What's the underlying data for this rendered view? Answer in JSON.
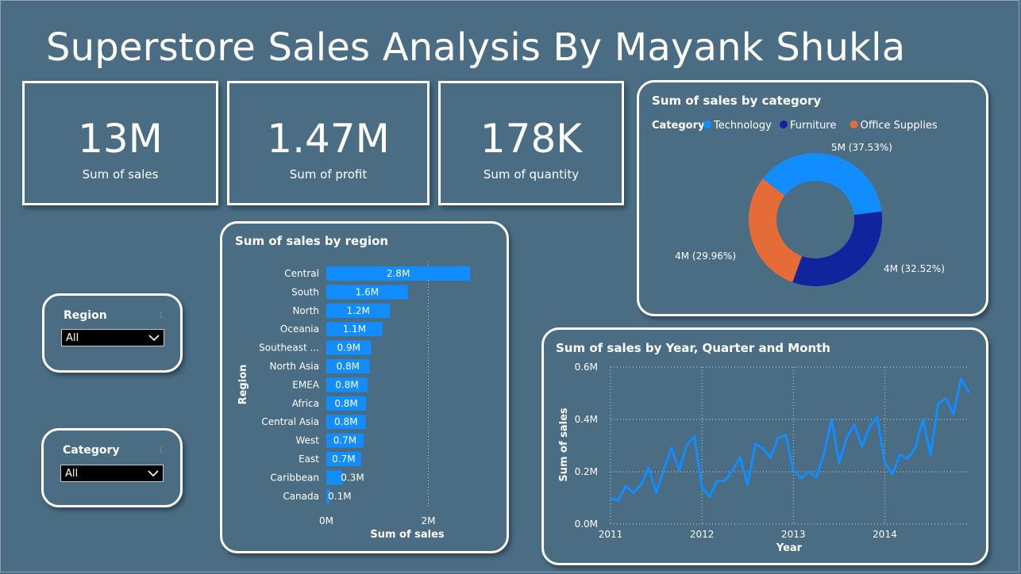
{
  "title": "Superstore Sales Analysis By Mayank Shukla",
  "kpis": [
    {
      "value": "13M",
      "label": "Sum of sales"
    },
    {
      "value": "1.47M",
      "label": "Sum of profit"
    },
    {
      "value": "178K",
      "label": "Sum of quantity"
    }
  ],
  "slicers": {
    "region": {
      "title": "Region",
      "selected": "All"
    },
    "category": {
      "title": "Category",
      "selected": "All"
    }
  },
  "colors": {
    "background": "#4a6d84",
    "accent": "#118dff",
    "technology": "#118dff",
    "furniture": "#12239e",
    "office_supplies": "#e66c37"
  },
  "chart_data": [
    {
      "type": "bar",
      "orientation": "horizontal",
      "title": "Sum of sales by region",
      "xlabel": "Sum of sales",
      "ylabel": "Region",
      "xlim": [
        0,
        3000000
      ],
      "x_ticks": [
        {
          "value": 0,
          "label": "0M"
        },
        {
          "value": 2000000,
          "label": "2M"
        }
      ],
      "categories": [
        "Central",
        "South",
        "North",
        "Oceania",
        "Southeast ...",
        "North Asia",
        "EMEA",
        "Africa",
        "Central Asia",
        "West",
        "East",
        "Caribbean",
        "Canada"
      ],
      "values": [
        2820000,
        1600000,
        1250000,
        1100000,
        880000,
        850000,
        810000,
        780000,
        770000,
        730000,
        680000,
        320000,
        70000
      ],
      "data_labels": [
        "2.8M",
        "1.6M",
        "1.2M",
        "1.1M",
        "0.9M",
        "0.8M",
        "0.8M",
        "0.8M",
        "0.8M",
        "0.7M",
        "0.7M",
        "0.3M",
        "0.1M"
      ],
      "grid": true
    },
    {
      "type": "pie",
      "variant": "donut",
      "title": "Sum of sales by category",
      "legend_title": "Category",
      "legend_position": "top-left",
      "slices": [
        {
          "name": "Technology",
          "value": 37.53,
          "label": "5M (37.53%)"
        },
        {
          "name": "Furniture",
          "value": 32.52,
          "label": "4M (32.52%)"
        },
        {
          "name": "Office Supplies",
          "value": 29.96,
          "label": "4M (29.96%)"
        }
      ]
    },
    {
      "type": "line",
      "title": "Sum of sales by Year, Quarter and Month",
      "xlabel": "Year",
      "ylabel": "Sum of sales",
      "ylim": [
        0,
        600000
      ],
      "y_ticks": [
        {
          "value": 0,
          "label": "0.0M"
        },
        {
          "value": 200000,
          "label": "0.2M"
        },
        {
          "value": 400000,
          "label": "0.4M"
        },
        {
          "value": 600000,
          "label": "0.6M"
        }
      ],
      "x_ticks": [
        "2011",
        "2012",
        "2013",
        "2014"
      ],
      "x_start": "2011-01",
      "grid": true,
      "series": [
        {
          "values": [
            98000,
            91000,
            145000,
            120000,
            150000,
            215000,
            120000,
            210000,
            290000,
            205000,
            300000,
            335000,
            140000,
            105000,
            165000,
            165000,
            205000,
            255000,
            150000,
            305000,
            290000,
            255000,
            330000,
            340000,
            205000,
            175000,
            200000,
            180000,
            265000,
            400000,
            235000,
            330000,
            380000,
            295000,
            370000,
            410000,
            235000,
            190000,
            265000,
            250000,
            290000,
            400000,
            265000,
            460000,
            480000,
            420000,
            555000,
            505000
          ]
        }
      ]
    }
  ]
}
